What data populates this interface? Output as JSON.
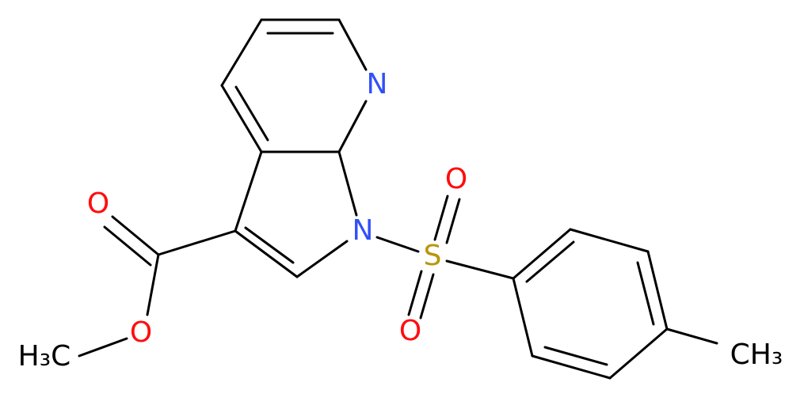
{
  "atoms": [
    {
      "label": "N"
    },
    {
      "label": "N"
    },
    {
      "label": "S"
    },
    {
      "label": "O"
    },
    {
      "label": "O"
    },
    {
      "label": "O"
    },
    {
      "label": "O"
    },
    {
      "label": "H₃C"
    },
    {
      "label": "CH₃"
    }
  ]
}
